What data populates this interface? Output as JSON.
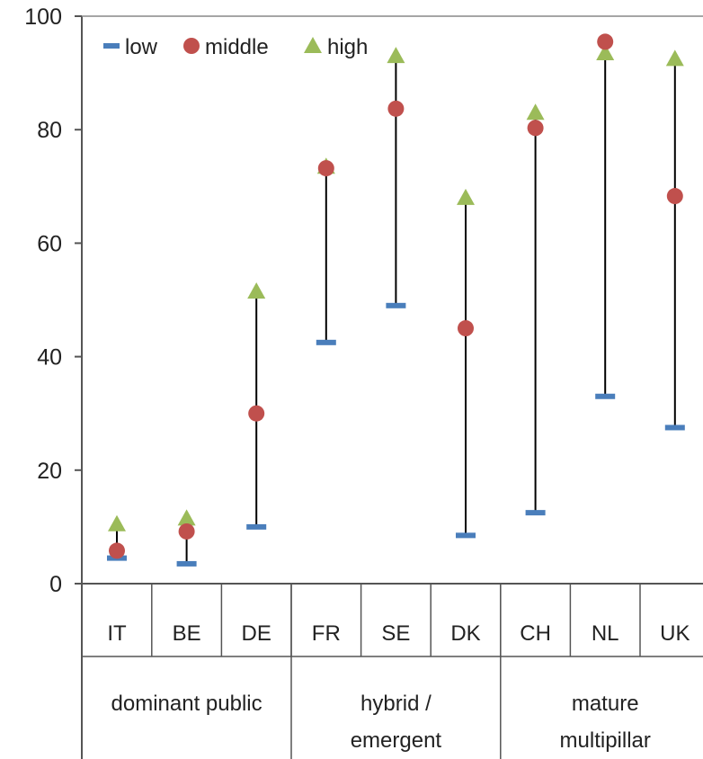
{
  "chart_data": {
    "type": "scatter",
    "categories": [
      "IT",
      "BE",
      "DE",
      "FR",
      "SE",
      "DK",
      "CH",
      "NL",
      "UK"
    ],
    "groups": [
      {
        "label_lines": [
          "dominant public"
        ],
        "categories": [
          "IT",
          "BE",
          "DE"
        ]
      },
      {
        "label_lines": [
          "hybrid /",
          "emergent"
        ],
        "categories": [
          "FR",
          "SE",
          "DK"
        ]
      },
      {
        "label_lines": [
          "mature",
          "multipillar"
        ],
        "categories": [
          "CH",
          "NL",
          "UK"
        ]
      }
    ],
    "series": [
      {
        "name": "low",
        "values": [
          4.5,
          3.5,
          10,
          42.5,
          49,
          8.5,
          12.5,
          33,
          27.5
        ],
        "color": "#4a7ebb",
        "marker": "dash"
      },
      {
        "name": "middle",
        "values": [
          5.8,
          9.2,
          30,
          73.2,
          83.7,
          45,
          80.3,
          95.5,
          68.3
        ],
        "color": "#c0504d",
        "marker": "circle"
      },
      {
        "name": "high",
        "values": [
          10.5,
          11.5,
          51.5,
          73.5,
          93,
          68,
          83,
          93.5,
          92.5
        ],
        "color": "#9bbb59",
        "marker": "triangle"
      }
    ],
    "ylim": [
      0,
      100
    ],
    "yticks": [
      0,
      20,
      40,
      60,
      80,
      100
    ],
    "legend_position": "top-left",
    "grid": false,
    "xlabel": "",
    "ylabel": "",
    "title": ""
  }
}
